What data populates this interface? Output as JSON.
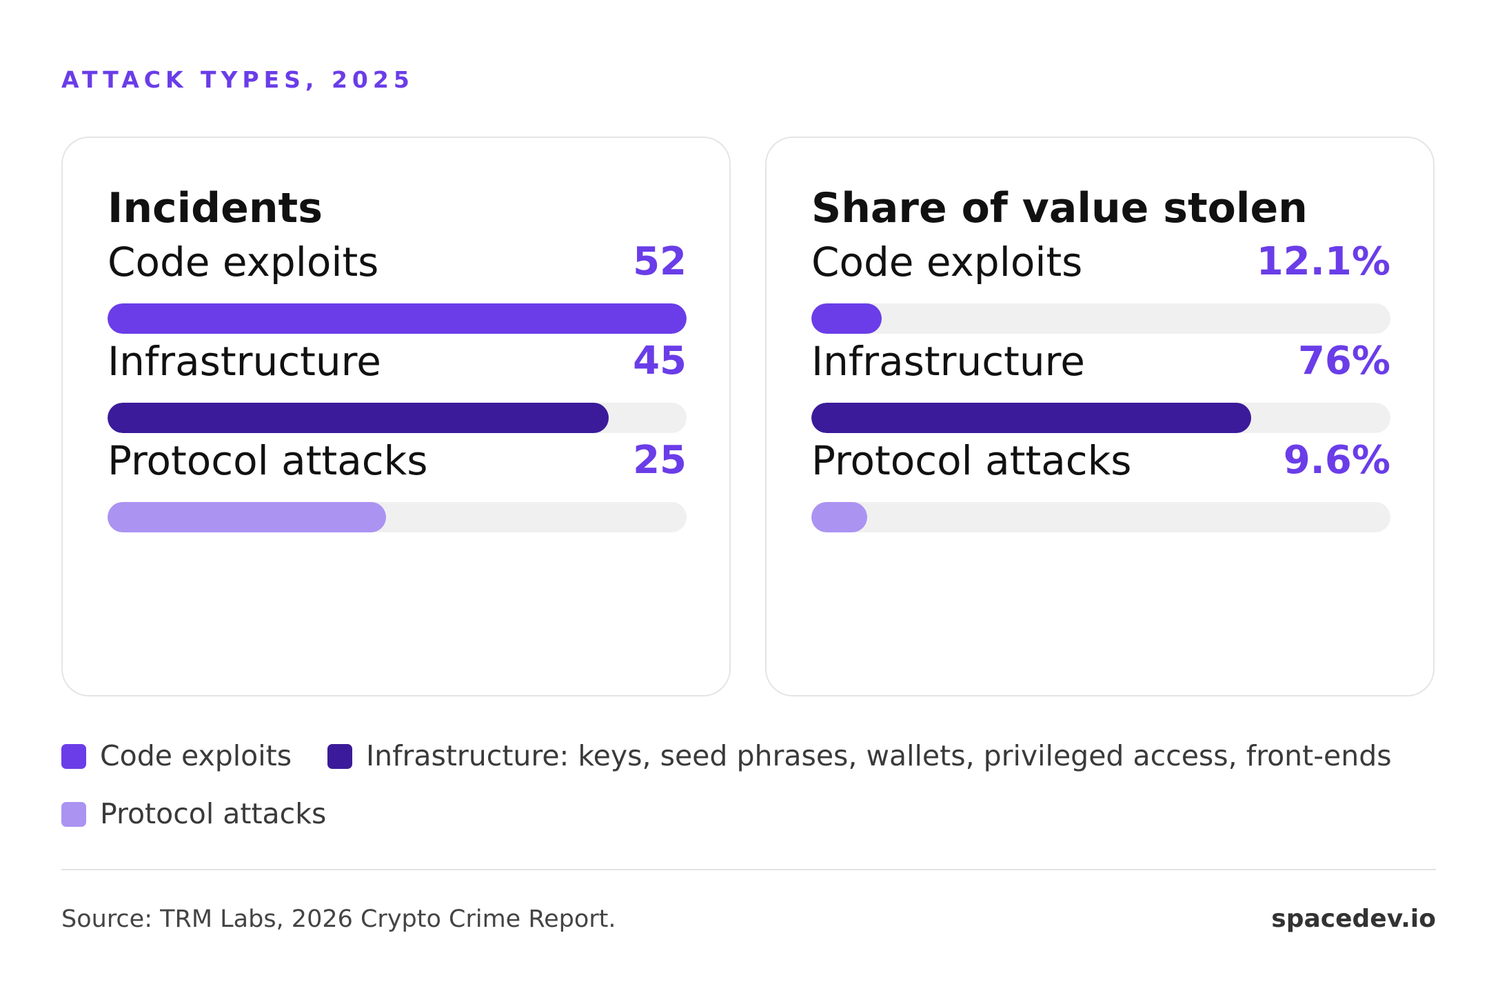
{
  "header": {
    "eyebrow": "ATTACK TYPES, 2025"
  },
  "colors": {
    "code_exploits": "#6a3de8",
    "infrastructure": "#3b1b99",
    "protocol_attacks": "#ab93f2",
    "track": "#f0f0f0",
    "accent": "#6a3de8"
  },
  "chart_data": [
    {
      "type": "bar",
      "orientation": "horizontal",
      "title": "Incidents",
      "categories": [
        "Code exploits",
        "Infrastructure",
        "Protocol attacks"
      ],
      "values": [
        52,
        45,
        25
      ],
      "value_labels": [
        "52",
        "45",
        "25"
      ],
      "xlim": [
        0,
        52
      ]
    },
    {
      "type": "bar",
      "orientation": "horizontal",
      "title": "Share of value stolen",
      "categories": [
        "Code exploits",
        "Infrastructure",
        "Protocol attacks"
      ],
      "values": [
        12.1,
        76,
        9.6
      ],
      "value_labels": [
        "12.1%",
        "76%",
        "9.6%"
      ],
      "xlim": [
        0,
        100
      ]
    }
  ],
  "legend": {
    "items": [
      {
        "label": "Code exploits",
        "color": "#6a3de8"
      },
      {
        "label": "Infrastructure: keys, seed phrases, wallets, privileged access, front-ends",
        "color": "#3b1b99"
      },
      {
        "label": "Protocol attacks",
        "color": "#ab93f2"
      }
    ]
  },
  "footer": {
    "source": "Source: TRM Labs, 2026 Crypto Crime Report.",
    "brand": "spacedev.io"
  }
}
